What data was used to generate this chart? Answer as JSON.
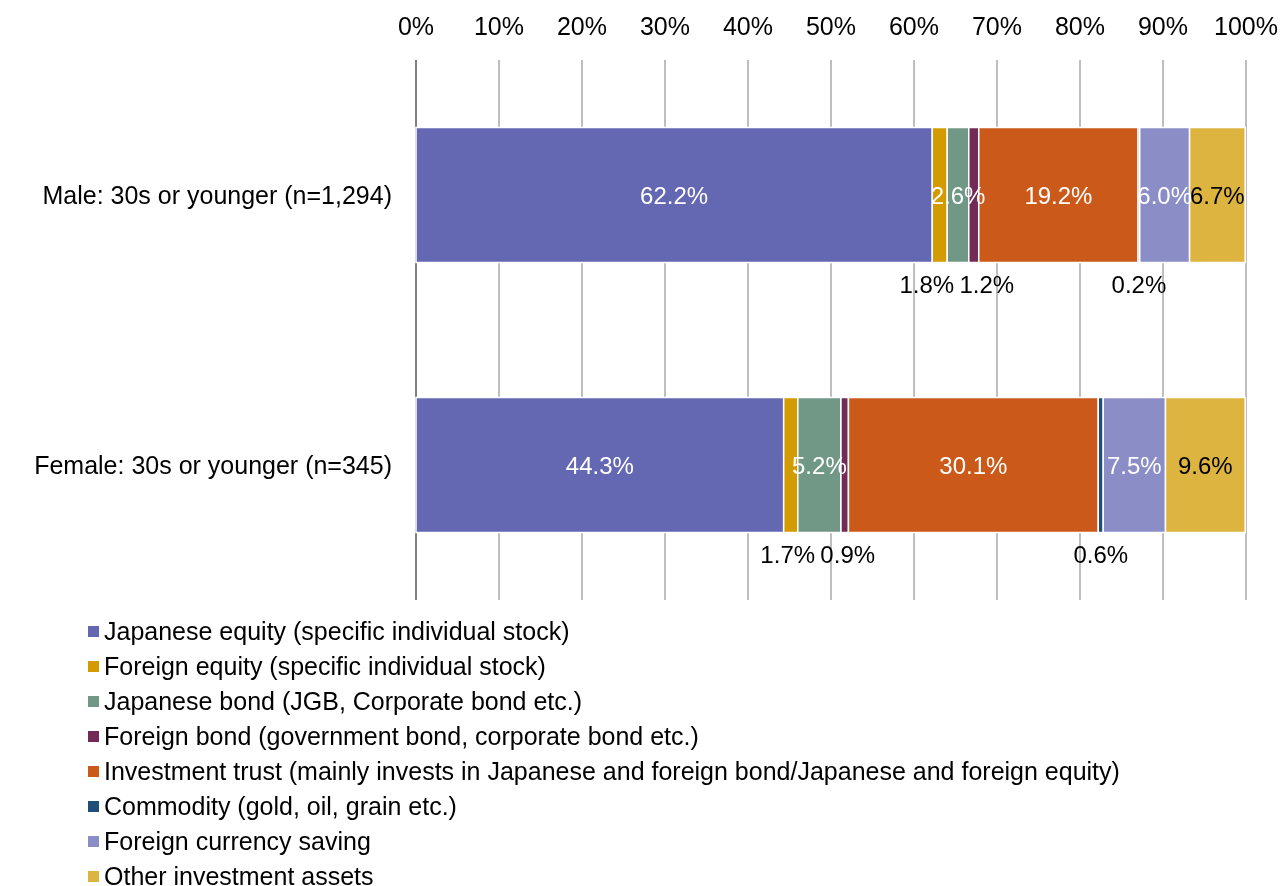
{
  "chart_data": {
    "type": "bar",
    "orientation": "horizontal",
    "stacked": true,
    "categories": [
      "Male: 30s or younger (n=1,294)",
      "Female: 30s or younger (n=345)"
    ],
    "series": [
      {
        "name": "Japanese equity (specific individual stock)",
        "color": "#6468b2",
        "values": [
          62.2,
          44.3
        ],
        "value_labels": [
          "62.2%",
          "44.3%"
        ]
      },
      {
        "name": "Foreign equity (specific individual stock)",
        "color": "#d49b00",
        "values": [
          1.8,
          1.7
        ],
        "value_labels": [
          "1.8%",
          "1.7%"
        ]
      },
      {
        "name": "Japanese bond (JGB, Corporate bond etc.)",
        "color": "#719886",
        "values": [
          2.6,
          5.2
        ],
        "value_labels": [
          "2.6%",
          "5.2%"
        ]
      },
      {
        "name": "Foreign bond (government bond, corporate bond etc.)",
        "color": "#722a56",
        "values": [
          1.2,
          0.9
        ],
        "value_labels": [
          "1.2%",
          "0.9%"
        ]
      },
      {
        "name": "Investment trust (mainly invests in Japanese and foreign bond/Japanese and foreign equity)",
        "color": "#cb5a1a",
        "values": [
          19.2,
          30.1
        ],
        "value_labels": [
          "19.2%",
          "30.1%"
        ]
      },
      {
        "name": "Commodity (gold, oil, grain etc.)",
        "color": "#1f4e79",
        "values": [
          0.2,
          0.6
        ],
        "value_labels": [
          "0.2%",
          "0.6%"
        ]
      },
      {
        "name": "Foreign currency saving",
        "color": "#8b8dc7",
        "values": [
          6.0,
          7.5
        ],
        "value_labels": [
          "6.0%",
          "7.5%"
        ]
      },
      {
        "name": "Other investment assets",
        "color": "#ddb440",
        "values": [
          6.7,
          9.6
        ],
        "value_labels": [
          "6.7%",
          "9.6%"
        ]
      }
    ],
    "xlim": [
      0,
      100
    ],
    "xticks": [
      {
        "value": 0,
        "label": "0%"
      },
      {
        "value": 10,
        "label": "10%"
      },
      {
        "value": 20,
        "label": "20%"
      },
      {
        "value": 30,
        "label": "30%"
      },
      {
        "value": 40,
        "label": "40%"
      },
      {
        "value": 50,
        "label": "50%"
      },
      {
        "value": 60,
        "label": "60%"
      },
      {
        "value": 70,
        "label": "70%"
      },
      {
        "value": 80,
        "label": "80%"
      },
      {
        "value": 90,
        "label": "90%"
      },
      {
        "value": 100,
        "label": "100%"
      }
    ],
    "grid": "x",
    "legend": "bottom"
  }
}
